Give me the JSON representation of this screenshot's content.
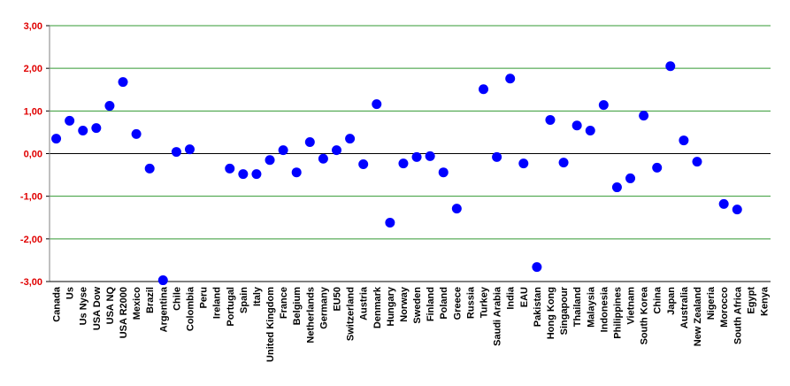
{
  "chart_data": {
    "type": "scatter",
    "categories": [
      "Canada",
      "Us",
      "Us Nyse",
      "USA Dow",
      "USA NQ",
      "USA R2000",
      "Mexico",
      "Brazil",
      "Argentina",
      "Chile",
      "Colombia",
      "Peru",
      "Ireland",
      "Portugal",
      "Spain",
      "Italy",
      "United Kingdom",
      "France",
      "Belgium",
      "Netherlands",
      "Germany",
      "EU50",
      "Switzerland",
      "Austria",
      "Denmark",
      "Hungary",
      "Norway",
      "Sweden",
      "Finland",
      "Poland",
      "Greece",
      "Russia",
      "Turkey",
      "Saudi Arabia",
      "India",
      "EAU",
      "Pakistan",
      "Hong Kong",
      "Singapour",
      "Thailand",
      "Malaysia",
      "Indonesia",
      "Philippines",
      "Vietnam",
      "South Korea",
      "China",
      "Japan",
      "Australia",
      "New Zealand",
      "Nigeria",
      "Morocco",
      "South Africa",
      "Egypt",
      "Kenya"
    ],
    "values": [
      0.35,
      0.77,
      0.54,
      0.6,
      1.12,
      1.68,
      0.46,
      -0.35,
      -2.97,
      0.04,
      0.1,
      null,
      null,
      -0.35,
      -0.48,
      -0.48,
      -0.15,
      0.08,
      -0.44,
      0.27,
      -0.12,
      0.08,
      0.35,
      -0.25,
      1.16,
      -1.62,
      -0.23,
      -0.08,
      -0.06,
      -0.44,
      -1.29,
      null,
      1.51,
      -0.08,
      1.76,
      -0.23,
      -2.66,
      0.79,
      -0.21,
      0.66,
      0.54,
      1.14,
      -0.79,
      -0.58,
      0.89,
      -0.33,
      2.05,
      0.31,
      -0.19,
      null,
      -1.18,
      -1.31,
      null,
      null
    ],
    "color": "#0000ff",
    "ylim": [
      -3,
      3
    ],
    "yticks": [
      {
        "value": -3,
        "label": "-3,00"
      },
      {
        "value": -2,
        "label": "-2,00"
      },
      {
        "value": -1,
        "label": "-1,00"
      },
      {
        "value": 0,
        "label": "0,00"
      },
      {
        "value": 1,
        "label": "1,00"
      },
      {
        "value": 2,
        "label": "2,00"
      },
      {
        "value": 3,
        "label": "3,00"
      }
    ],
    "grid": true
  }
}
